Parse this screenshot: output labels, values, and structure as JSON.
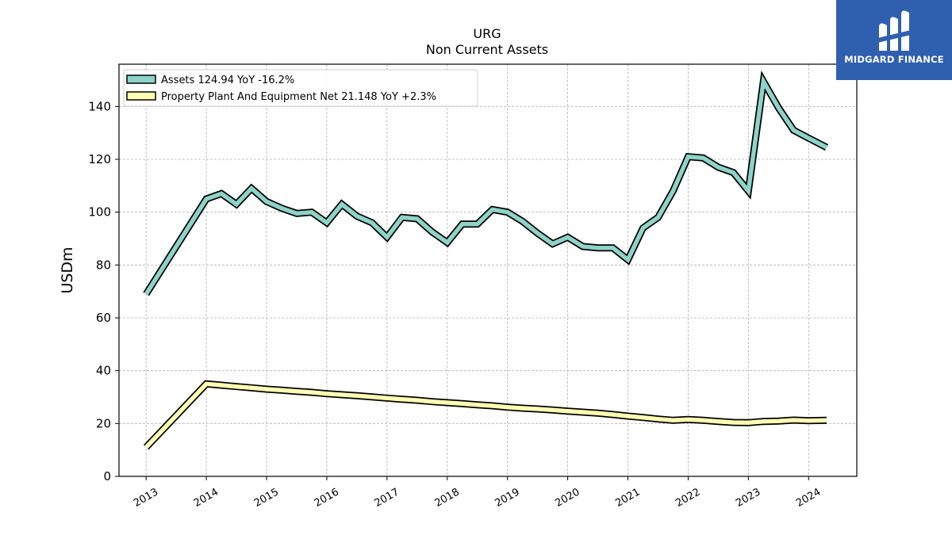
{
  "chart_data": {
    "type": "line",
    "title": "URG",
    "subtitle": "Non Current  Assets",
    "ylabel": "USDm",
    "xlabel": "",
    "ylim": [
      0,
      156
    ],
    "xlim": [
      2012.55,
      2024.8
    ],
    "yticks": [
      0,
      20,
      40,
      60,
      80,
      100,
      120,
      140
    ],
    "xticks": [
      "2013",
      "2014",
      "2015",
      "2016",
      "2017",
      "2018",
      "2019",
      "2020",
      "2021",
      "2022",
      "2023",
      "2024"
    ],
    "grid": true,
    "legend_position": "top-left",
    "series": [
      {
        "name": "Assets  124.94 YoY -16.2%",
        "color": "#8dd3c7",
        "x": [
          2013.0,
          2014.0,
          2014.25,
          2014.5,
          2014.75,
          2015.0,
          2015.25,
          2015.5,
          2015.75,
          2016.0,
          2016.25,
          2016.5,
          2016.75,
          2017.0,
          2017.25,
          2017.5,
          2017.75,
          2018.0,
          2018.25,
          2018.5,
          2018.75,
          2019.0,
          2019.25,
          2019.5,
          2019.75,
          2020.0,
          2020.25,
          2020.5,
          2020.75,
          2021.0,
          2021.25,
          2021.5,
          2021.75,
          2022.0,
          2022.25,
          2022.5,
          2022.75,
          2023.0,
          2023.25,
          2023.5,
          2023.75,
          2024.0,
          2024.3
        ],
        "values": [
          69,
          105,
          107,
          103,
          109,
          104,
          101.5,
          99.5,
          100,
          96,
          103,
          98.5,
          96,
          90.5,
          98,
          97.5,
          92.5,
          88.5,
          95.5,
          95.5,
          101,
          100,
          96.5,
          92,
          88,
          90.5,
          87,
          86.5,
          86.5,
          82,
          94,
          98,
          108,
          121,
          120.5,
          117,
          115,
          108,
          149.5,
          139.5,
          131,
          128,
          124.5
        ]
      },
      {
        "name": "Property Plant And Equipment Net  21.148 YoY +2.3%",
        "color": "#ffffb3",
        "x": [
          2013.0,
          2014.0,
          2014.25,
          2014.5,
          2014.75,
          2015.0,
          2015.25,
          2015.5,
          2015.75,
          2016.0,
          2016.25,
          2016.5,
          2016.75,
          2017.0,
          2017.25,
          2017.5,
          2017.75,
          2018.0,
          2018.25,
          2018.5,
          2018.75,
          2019.0,
          2019.25,
          2019.5,
          2019.75,
          2020.0,
          2020.25,
          2020.5,
          2020.75,
          2021.0,
          2021.25,
          2021.5,
          2021.75,
          2022.0,
          2022.25,
          2022.5,
          2022.75,
          2023.0,
          2023.25,
          2023.5,
          2023.75,
          2024.0,
          2024.3
        ],
        "values": [
          11,
          35,
          34.5,
          34,
          33.5,
          33,
          32.6,
          32.2,
          31.8,
          31.3,
          30.9,
          30.5,
          30.1,
          29.6,
          29.2,
          28.8,
          28.3,
          27.9,
          27.5,
          27.1,
          26.7,
          26.2,
          25.8,
          25.5,
          25.1,
          24.7,
          24.3,
          23.9,
          23.4,
          22.8,
          22.3,
          21.7,
          21.2,
          21.5,
          21.2,
          20.8,
          20.4,
          20.3,
          20.8,
          20.9,
          21.3,
          21.1,
          21.2
        ]
      }
    ]
  },
  "logo": {
    "text": "MIDGARD FINANCE",
    "background": "#2f5faf"
  }
}
